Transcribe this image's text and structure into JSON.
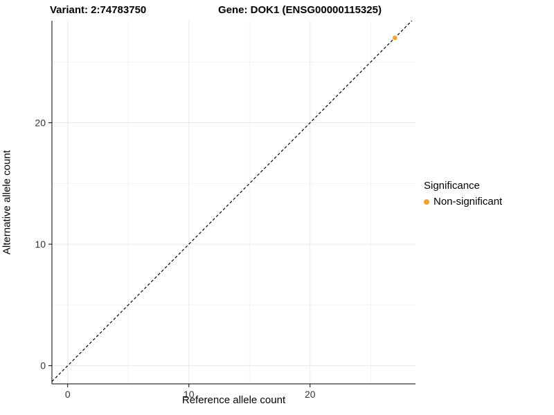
{
  "titles": {
    "variant": "Variant: 2:74783750",
    "gene": "Gene: DOK1 (ENSG00000115325)"
  },
  "legend": {
    "title": "Significance",
    "items": [
      {
        "label": "Non-significant",
        "color": "#F8A02B"
      }
    ]
  },
  "chart_data": {
    "type": "scatter",
    "title": "",
    "xlabel": "Reference allele count",
    "ylabel": "Alternative allele count",
    "xlim": [
      -1.3,
      28.7
    ],
    "ylim": [
      -1.5,
      28.4
    ],
    "xticks": [
      0,
      10,
      20
    ],
    "yticks": [
      0,
      10,
      20
    ],
    "minor_xticks": [
      5,
      15,
      25
    ],
    "minor_yticks": [
      5,
      15,
      25
    ],
    "grid": true,
    "grid_major_color": "#e8e8e8",
    "grid_minor_color": "#f2f2f2",
    "axis_color": "#000000",
    "tick_label_color": "#333333",
    "identity_line": {
      "slope": 1,
      "intercept": 0,
      "style": "dashed",
      "color": "#000000"
    },
    "series": [
      {
        "name": "Non-significant",
        "color": "#F8A02B",
        "points": [
          [
            27,
            27
          ]
        ]
      }
    ],
    "legend_position": "right"
  }
}
